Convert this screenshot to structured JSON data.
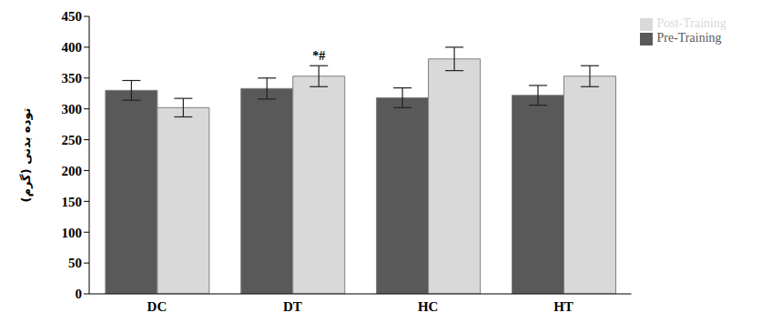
{
  "chart_data": {
    "type": "bar",
    "y_label": "توده بدنی (گرم)",
    "categories": [
      "DC",
      "DT",
      "HC",
      "HT"
    ],
    "series": [
      {
        "name": "Pre-Training",
        "color": "#595959",
        "values": [
          330,
          333,
          318,
          322
        ],
        "errors": [
          16,
          17,
          16,
          16
        ]
      },
      {
        "name": "Post-Training",
        "color": "#d9d9d9",
        "values": [
          302,
          353,
          381,
          353
        ],
        "errors": [
          15,
          17,
          19,
          17
        ]
      }
    ],
    "annotations": [
      {
        "text": "*#",
        "category": "DT",
        "series": "Post-Training"
      }
    ],
    "ylim": [
      0,
      450
    ],
    "yticks": [
      0,
      50,
      100,
      150,
      200,
      250,
      300,
      350,
      400,
      450
    ],
    "grid": false,
    "legend": "top-right"
  }
}
